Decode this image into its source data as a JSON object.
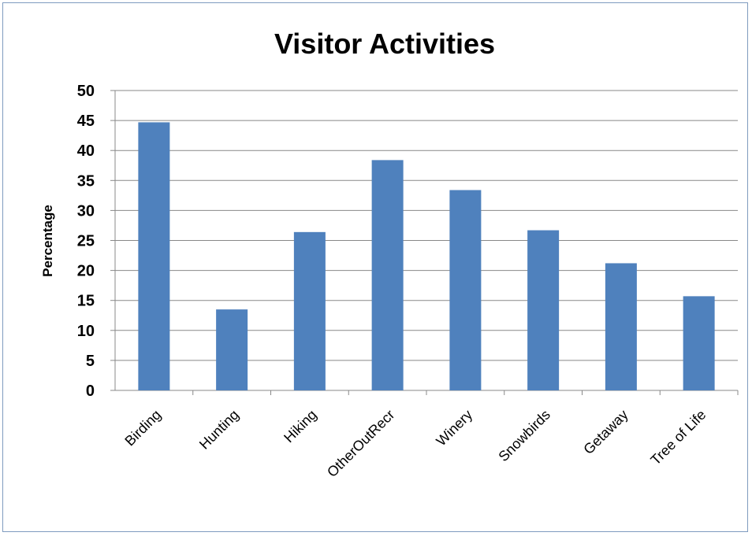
{
  "chart_data": {
    "type": "bar",
    "title": "Visitor Activities",
    "xlabel": "",
    "ylabel": "Percentage",
    "ylim": [
      0,
      50
    ],
    "yticks": [
      0,
      5,
      10,
      15,
      20,
      25,
      30,
      35,
      40,
      45,
      50
    ],
    "grid": true,
    "legend": "none",
    "bar_color": "#4f81bd",
    "categories": [
      "Birding",
      "Hunting",
      "Hiking",
      "OtherOutRecr",
      "Winery",
      "Snowbirds",
      "Getaway",
      "Tree of Life"
    ],
    "values": [
      44.7,
      13.5,
      26.4,
      38.4,
      33.4,
      26.7,
      21.2,
      15.7
    ]
  }
}
